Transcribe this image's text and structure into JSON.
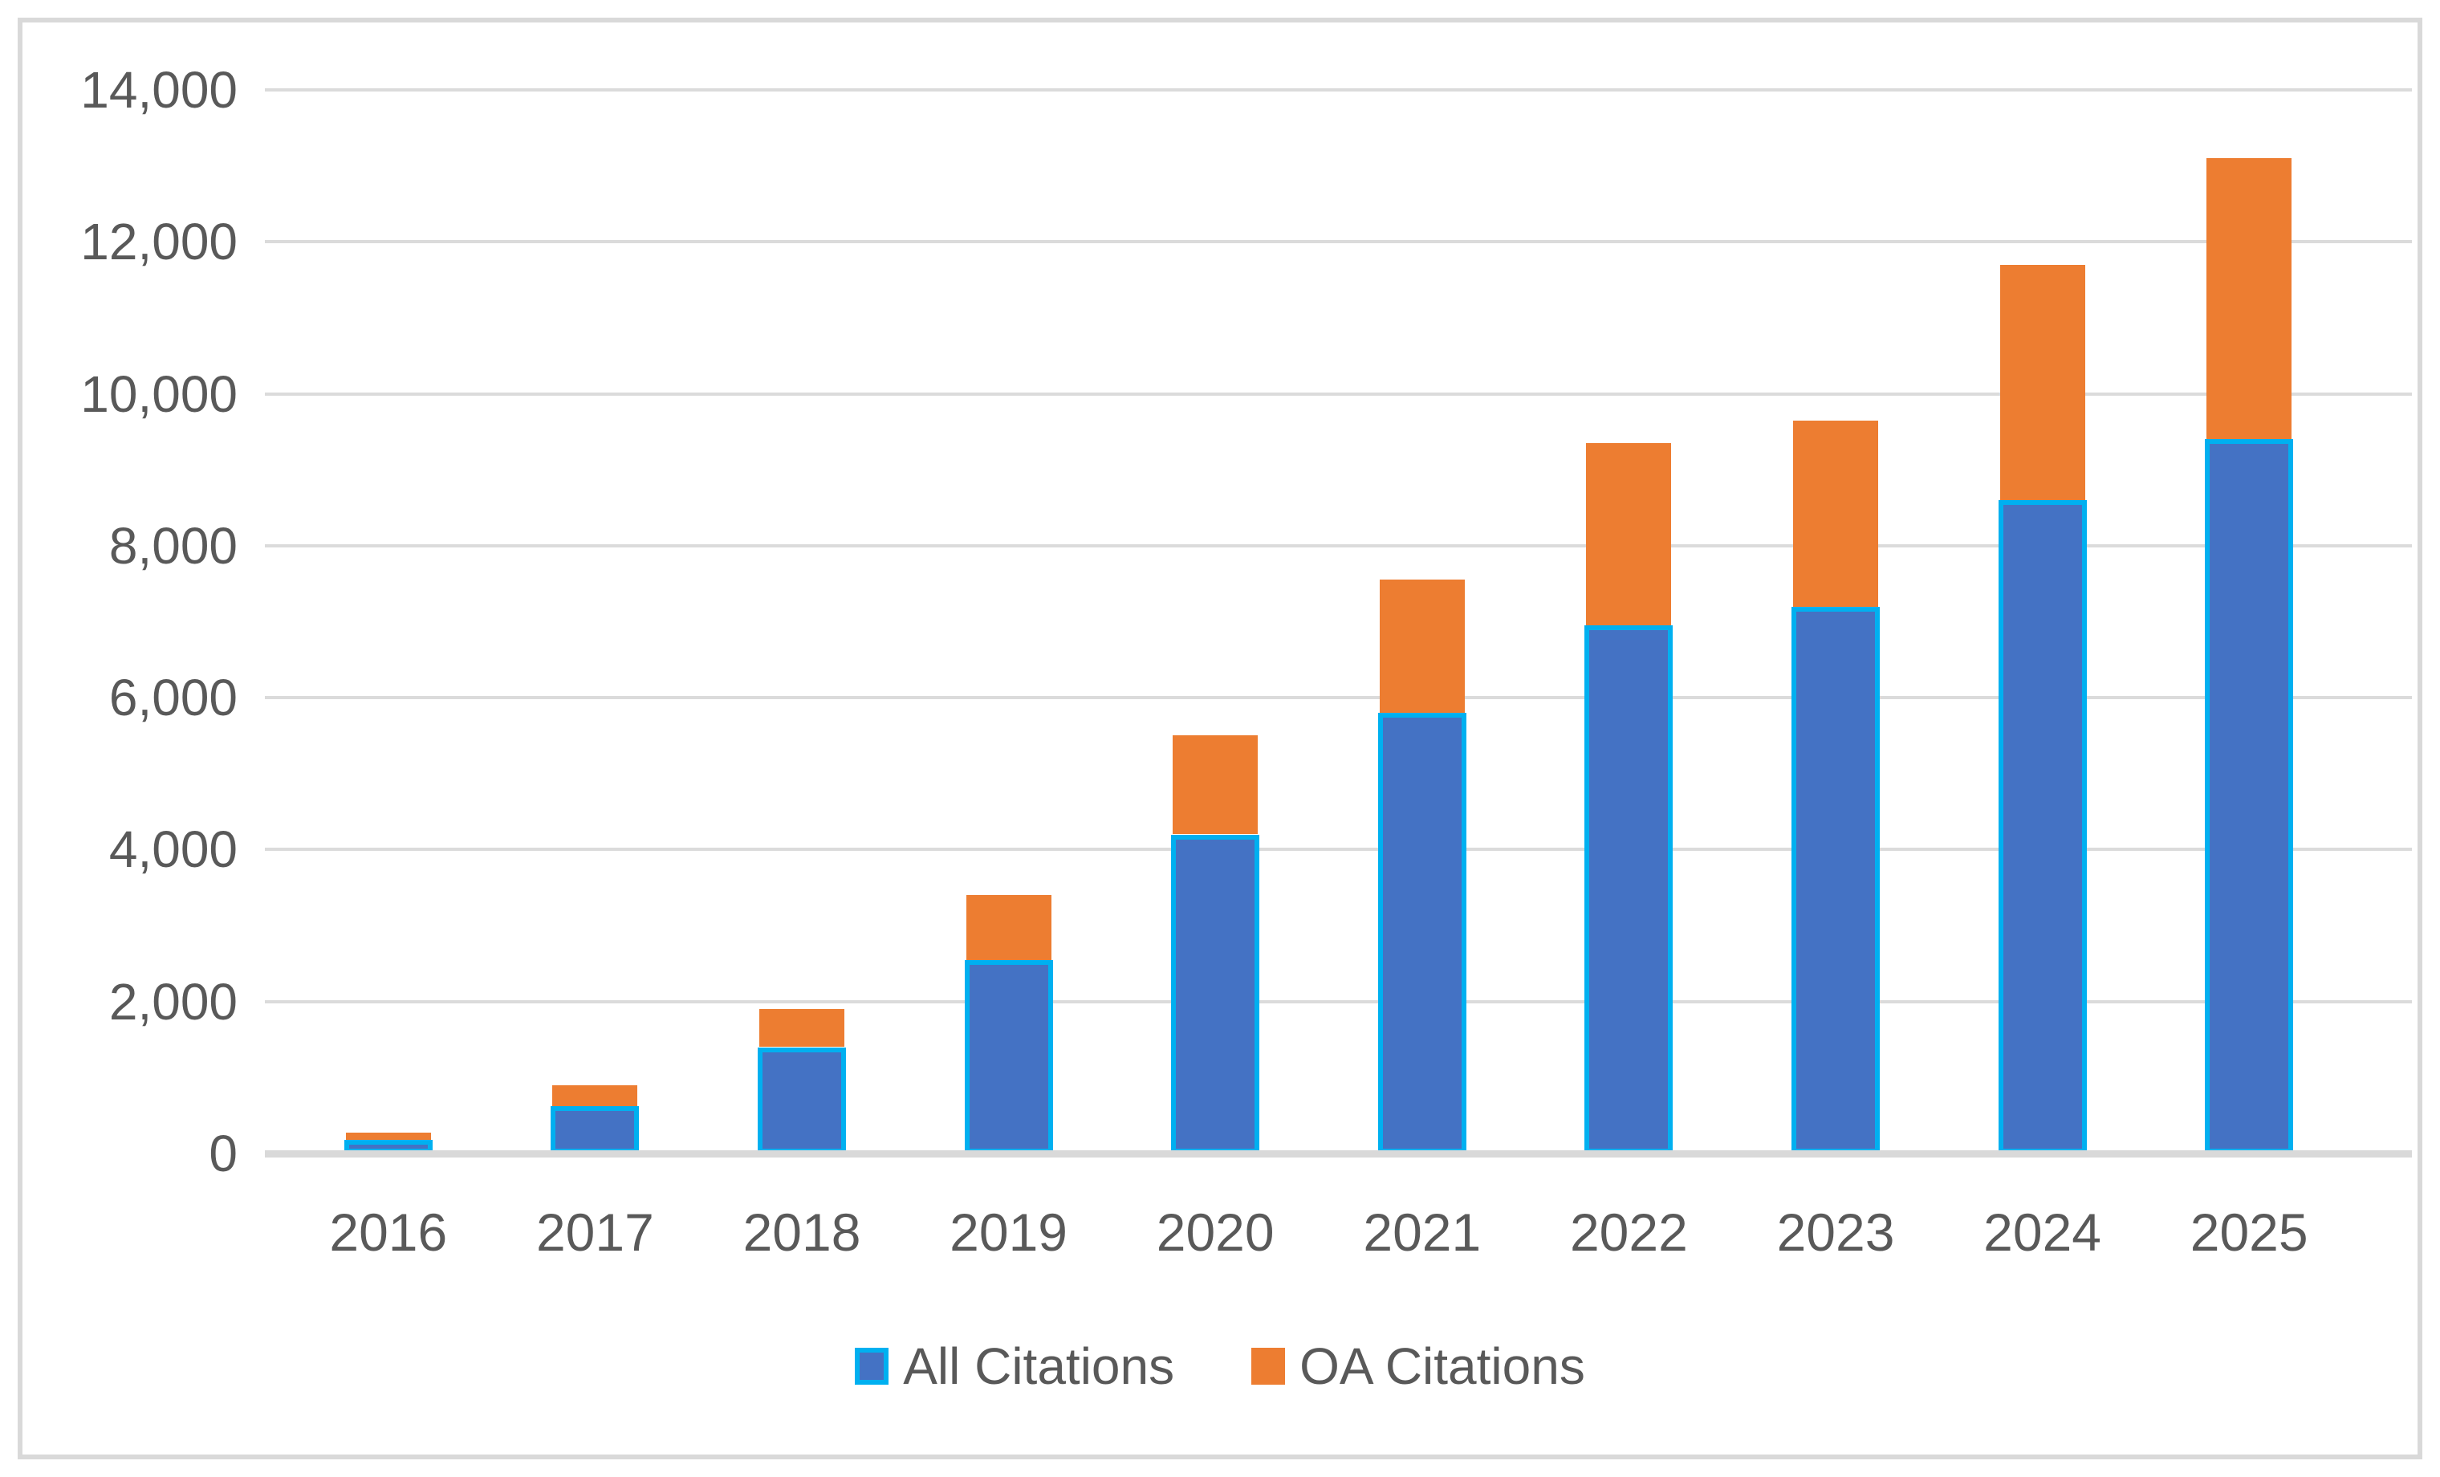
{
  "chart_data": {
    "type": "bar",
    "stacked": true,
    "title": "",
    "categories": [
      "2016",
      "2017",
      "2018",
      "2019",
      "2020",
      "2021",
      "2022",
      "2023",
      "2024",
      "2025"
    ],
    "series": [
      {
        "name": "All Citations",
        "color": "#4472C4",
        "border_color": "#00B0F0",
        "values": [
          180,
          620,
          1400,
          2550,
          4200,
          5800,
          6950,
          7200,
          8600,
          9400
        ]
      },
      {
        "name": "OA Citations",
        "color": "#ED7D31",
        "values": [
          90,
          280,
          500,
          850,
          1300,
          1750,
          2400,
          2450,
          3100,
          3700
        ]
      }
    ],
    "stack_totals": [
      270,
      900,
      1900,
      3400,
      5500,
      7550,
      9350,
      9650,
      11700,
      13100
    ],
    "xlabel": "",
    "ylabel": "",
    "ylim": [
      0,
      14000
    ],
    "ytick_interval": 2000,
    "ytick_labels": [
      "0",
      "2,000",
      "4,000",
      "6,000",
      "8,000",
      "10,000",
      "12,000",
      "14,000"
    ],
    "grid": true,
    "gridline_color": "#DBDBDB",
    "axis_line_color": "#D9D9D9",
    "tick_label_color": "#595959",
    "legend_position": "bottom"
  },
  "legend": {
    "entries": [
      {
        "label": "All Citations",
        "swatch_color": "#4472C4",
        "swatch_border": "#00B0F0"
      },
      {
        "label": "OA Citations",
        "swatch_color": "#ED7D31"
      }
    ]
  }
}
